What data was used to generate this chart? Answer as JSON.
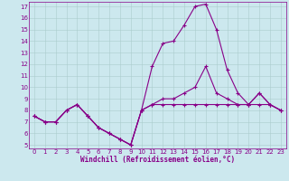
{
  "xlabel": "Windchill (Refroidissement éolien,°C)",
  "background_color": "#cce8ee",
  "grid_color": "#aacccc",
  "line_color": "#880088",
  "xlim": [
    -0.5,
    23.5
  ],
  "ylim": [
    4.7,
    17.4
  ],
  "yticks": [
    5,
    6,
    7,
    8,
    9,
    10,
    11,
    12,
    13,
    14,
    15,
    16,
    17
  ],
  "xticks": [
    0,
    1,
    2,
    3,
    4,
    5,
    6,
    7,
    8,
    9,
    10,
    11,
    12,
    13,
    14,
    15,
    16,
    17,
    18,
    19,
    20,
    21,
    22,
    23
  ],
  "line1_x": [
    0,
    1,
    2,
    3,
    4,
    5,
    6,
    7,
    8,
    9,
    10,
    11,
    12,
    13,
    14,
    15,
    16,
    17,
    18,
    19,
    20,
    21,
    22,
    23
  ],
  "line1_y": [
    7.5,
    7.0,
    7.0,
    8.0,
    8.5,
    7.5,
    6.5,
    6.0,
    5.5,
    5.0,
    8.0,
    8.5,
    8.5,
    8.5,
    8.5,
    8.5,
    8.5,
    8.5,
    8.5,
    8.5,
    8.5,
    8.5,
    8.5,
    8.0
  ],
  "line2_x": [
    0,
    1,
    2,
    3,
    4,
    5,
    6,
    7,
    8,
    9,
    10,
    11,
    12,
    13,
    14,
    15,
    16,
    17,
    18,
    19,
    20,
    21,
    22,
    23
  ],
  "line2_y": [
    7.5,
    7.0,
    7.0,
    8.0,
    8.5,
    7.5,
    6.5,
    6.0,
    5.5,
    5.0,
    8.0,
    11.8,
    13.8,
    14.0,
    15.4,
    17.0,
    17.2,
    15.0,
    11.5,
    9.5,
    8.5,
    9.5,
    8.5,
    8.0
  ],
  "line3_x": [
    0,
    1,
    2,
    3,
    4,
    5,
    6,
    7,
    8,
    9,
    10,
    11,
    12,
    13,
    14,
    15,
    16,
    17,
    18,
    19,
    20,
    21,
    22,
    23
  ],
  "line3_y": [
    7.5,
    7.0,
    7.0,
    8.0,
    8.5,
    7.5,
    6.5,
    6.0,
    5.5,
    5.0,
    8.0,
    8.5,
    9.0,
    9.0,
    9.5,
    10.0,
    11.8,
    9.5,
    9.0,
    8.5,
    8.5,
    9.5,
    8.5,
    8.0
  ],
  "xlabel_fontsize": 5.5,
  "tick_fontsize": 5.0,
  "line_width": 0.8,
  "marker_size": 3.0
}
